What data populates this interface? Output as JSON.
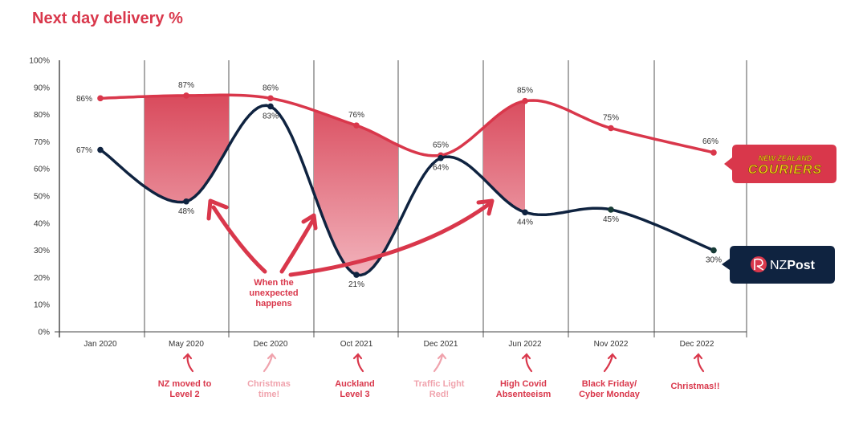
{
  "chart_data": {
    "type": "line",
    "title": "Next day delivery %",
    "categories": [
      "Jan 2020",
      "May 2020",
      "Dec 2020",
      "Oct 2021",
      "Dec 2021",
      "Jun 2022",
      "Nov 2022",
      "Dec 2022"
    ],
    "ylim": [
      0,
      100
    ],
    "yticks": [
      "0%",
      "10%",
      "20%",
      "30%",
      "40%",
      "50%",
      "60%",
      "70%",
      "80%",
      "90%",
      "100%"
    ],
    "grid": "vertical lines between categories",
    "series": [
      {
        "name": "New Zealand Couriers",
        "color": "#d9374b",
        "values": [
          86,
          87,
          86,
          76,
          65,
          85,
          75,
          66
        ],
        "labels": [
          "86%",
          "87%",
          "86%",
          "76%",
          "65%",
          "85%",
          "75%",
          "66%"
        ]
      },
      {
        "name": "NZ Post",
        "color": "#0f2340",
        "values": [
          67,
          48,
          83,
          21,
          64,
          44,
          45,
          30
        ],
        "labels": [
          "67%",
          "48%",
          "83%",
          "21%",
          "64%",
          "44%",
          "45%",
          "30%"
        ]
      }
    ],
    "shaded_gaps": [
      "May 2020",
      "Oct 2021",
      "Jun 2022"
    ],
    "callout": "When the unexpected happens",
    "events": [
      {
        "category": "May 2020",
        "text": [
          "NZ moved to",
          "Level 2"
        ],
        "color": "#d9374b"
      },
      {
        "category": "Dec 2020",
        "text": [
          "Christmas",
          "time!"
        ],
        "color": "#f0a3ad"
      },
      {
        "category": "Oct 2021",
        "text": [
          "Auckland",
          "Level 3"
        ],
        "color": "#d9374b"
      },
      {
        "category": "Dec 2021",
        "text": [
          "Traffic Light",
          "Red!"
        ],
        "color": "#f0a3ad"
      },
      {
        "category": "Jun 2022",
        "text": [
          "High Covid",
          "Absenteeism"
        ],
        "color": "#d9374b"
      },
      {
        "category": "Nov 2022",
        "text": [
          "Black Friday/",
          "Cyber Monday"
        ],
        "color": "#d9374b"
      },
      {
        "category": "Dec 2022",
        "text": [
          "Christmas!!"
        ],
        "color": "#d9374b"
      }
    ],
    "legend": {
      "couriers": {
        "line1": "NEW ZEALAND",
        "line2": "COURIERS"
      },
      "nzpost": {
        "a": "NZ",
        "b": "Post"
      }
    }
  }
}
